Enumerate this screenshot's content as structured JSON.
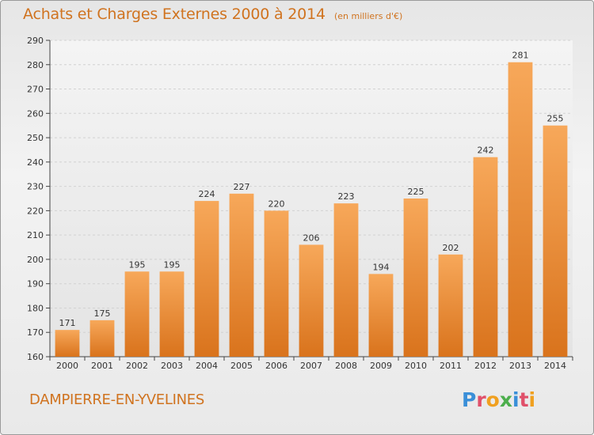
{
  "header": {
    "title": "Achats et Charges Externes 2000 à 2014",
    "subtitle": "(en milliers d'€)"
  },
  "footer": {
    "commune": "DAMPIERRE-EN-YVELINES",
    "logo": "Proxiti",
    "logo_colors": [
      "#3a8fd8",
      "#e0506a",
      "#f0a020",
      "#4cae4c",
      "#3a8fd8",
      "#e0506a",
      "#f0a020"
    ]
  },
  "chart_data": {
    "type": "bar",
    "categories": [
      "2000",
      "2001",
      "2002",
      "2003",
      "2004",
      "2005",
      "2006",
      "2007",
      "2008",
      "2009",
      "2010",
      "2011",
      "2012",
      "2013",
      "2014"
    ],
    "values": [
      171,
      175,
      195,
      195,
      224,
      227,
      220,
      206,
      223,
      194,
      225,
      202,
      242,
      281,
      255
    ],
    "title": "Achats et Charges Externes 2000 à 2014",
    "ylim": [
      160,
      290
    ],
    "yticks": [
      160,
      170,
      180,
      190,
      200,
      210,
      220,
      230,
      240,
      250,
      260,
      270,
      280,
      290
    ],
    "grid": true,
    "bar_color": "#f08a2a",
    "bar_color_light": "#f7a85a",
    "bar_color_dark": "#d9731c"
  }
}
